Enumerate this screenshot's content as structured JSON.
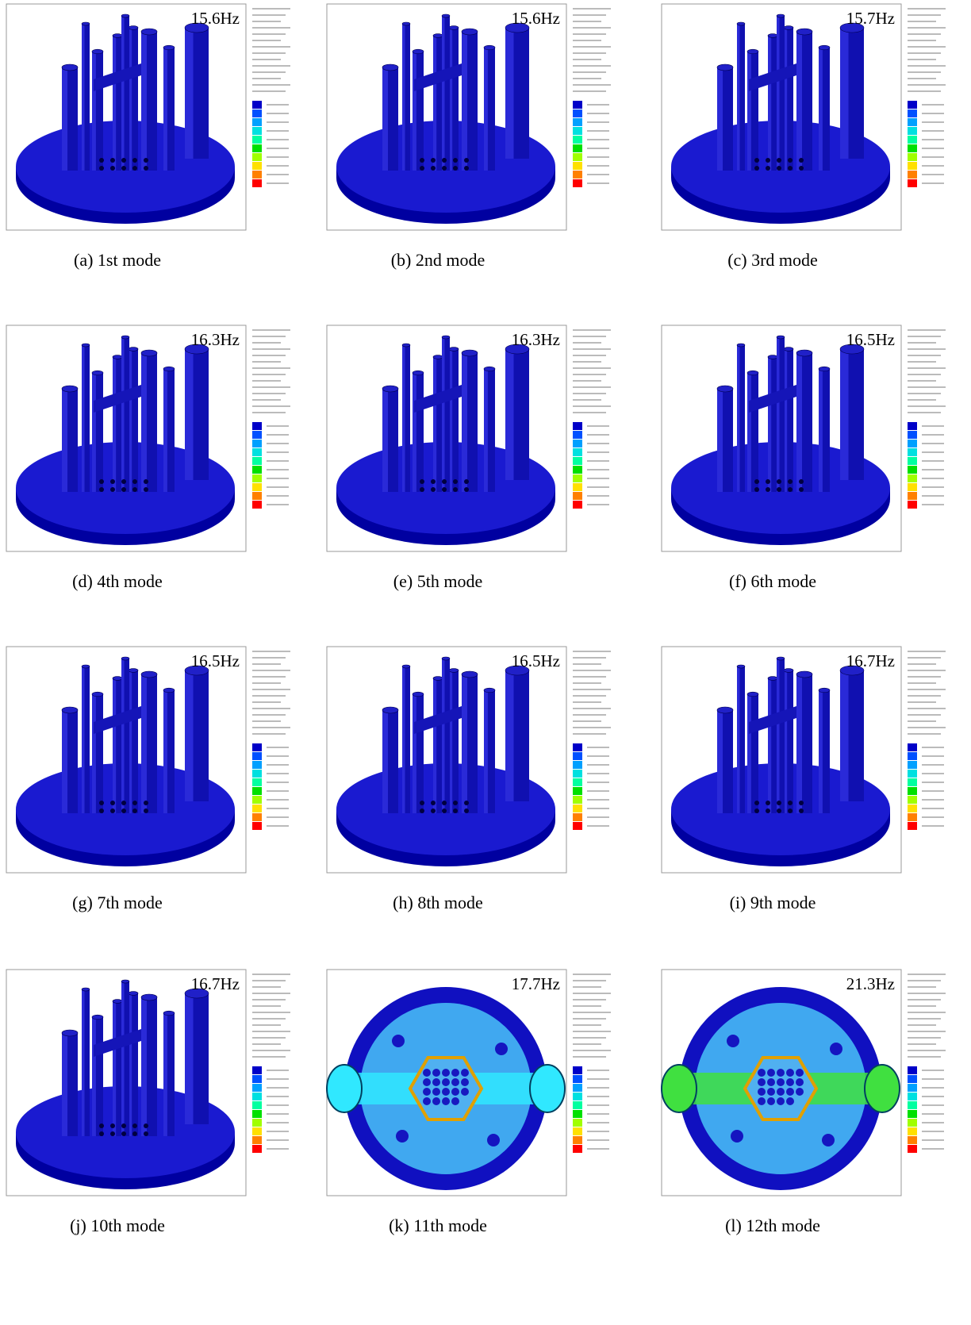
{
  "panels": [
    {
      "frequency": "15.6Hz",
      "caption": "(a) 1st mode"
    },
    {
      "frequency": "15.6Hz",
      "caption": "(b) 2nd mode"
    },
    {
      "frequency": "15.7Hz",
      "caption": "(c) 3rd mode"
    },
    {
      "frequency": "16.3Hz",
      "caption": "(d) 4th mode"
    },
    {
      "frequency": "16.3Hz",
      "caption": "(e) 5th mode"
    },
    {
      "frequency": "16.5Hz",
      "caption": "(f) 6th mode"
    },
    {
      "frequency": "16.5Hz",
      "caption": "(g) 7th mode"
    },
    {
      "frequency": "16.5Hz",
      "caption": "(h) 8th mode"
    },
    {
      "frequency": "16.7Hz",
      "caption": "(i) 9th mode"
    },
    {
      "frequency": "16.7Hz",
      "caption": "(j) 10th mode"
    },
    {
      "frequency": "17.7Hz",
      "caption": "(k) 11th mode"
    },
    {
      "frequency": "21.3Hz",
      "caption": "(l) 12th mode"
    }
  ]
}
